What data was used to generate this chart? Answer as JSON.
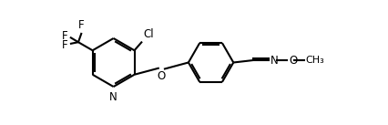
{
  "background_color": "#ffffff",
  "line_color": "#000000",
  "line_width": 1.5,
  "font_size": 8.5,
  "figsize": [
    4.27,
    1.37
  ],
  "dpi": 100,
  "xlim": [
    0,
    10.5
  ],
  "ylim": [
    0,
    4.5
  ]
}
